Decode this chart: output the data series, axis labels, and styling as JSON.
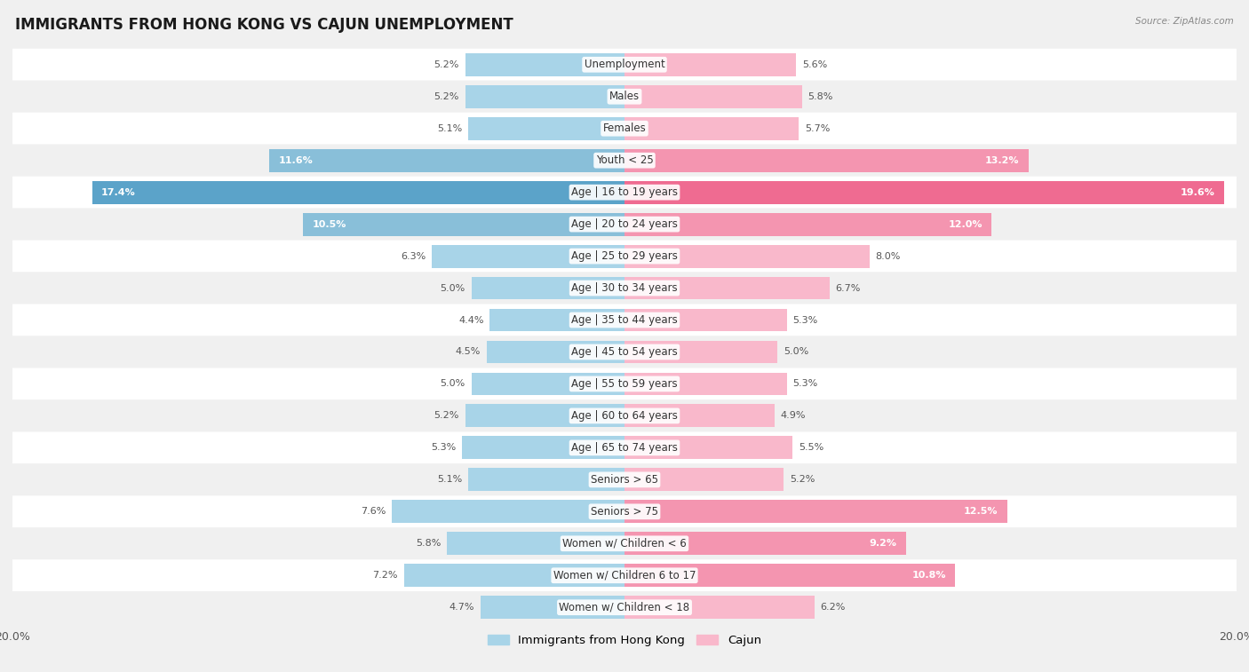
{
  "title": "IMMIGRANTS FROM HONG KONG VS CAJUN UNEMPLOYMENT",
  "source": "Source: ZipAtlas.com",
  "categories": [
    "Unemployment",
    "Males",
    "Females",
    "Youth < 25",
    "Age | 16 to 19 years",
    "Age | 20 to 24 years",
    "Age | 25 to 29 years",
    "Age | 30 to 34 years",
    "Age | 35 to 44 years",
    "Age | 45 to 54 years",
    "Age | 55 to 59 years",
    "Age | 60 to 64 years",
    "Age | 65 to 74 years",
    "Seniors > 65",
    "Seniors > 75",
    "Women w/ Children < 6",
    "Women w/ Children 6 to 17",
    "Women w/ Children < 18"
  ],
  "hk_values": [
    5.2,
    5.2,
    5.1,
    11.6,
    17.4,
    10.5,
    6.3,
    5.0,
    4.4,
    4.5,
    5.0,
    5.2,
    5.3,
    5.1,
    7.6,
    5.8,
    7.2,
    4.7
  ],
  "cajun_values": [
    5.6,
    5.8,
    5.7,
    13.2,
    19.6,
    12.0,
    8.0,
    6.7,
    5.3,
    5.0,
    5.3,
    4.9,
    5.5,
    5.2,
    12.5,
    9.2,
    10.8,
    6.2
  ],
  "hk_color_normal": "#A8D4E8",
  "hk_color_medium": "#89BFD9",
  "hk_color_large": "#5BA3C9",
  "cajun_color_normal": "#F9B8CB",
  "cajun_color_medium": "#F495B0",
  "cajun_color_large": "#EF6B91",
  "axis_max": 20.0,
  "bg_color": "#F0F0F0",
  "row_color_odd": "#FFFFFF",
  "row_color_even": "#F0F0F0",
  "title_fontsize": 12,
  "label_fontsize": 8.5,
  "value_fontsize": 8,
  "legend_fontsize": 9.5,
  "value_threshold_inside": 9.0
}
